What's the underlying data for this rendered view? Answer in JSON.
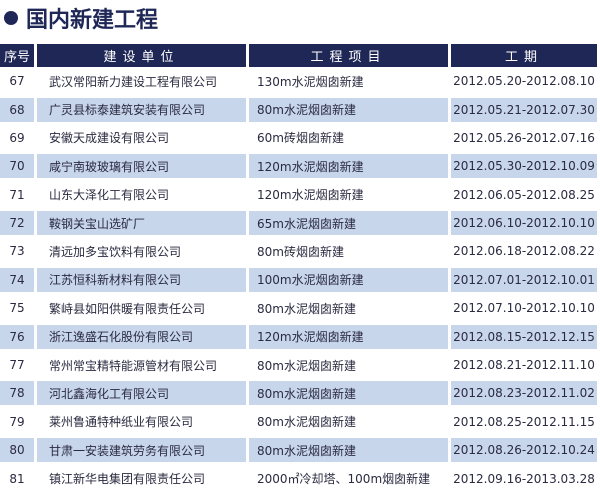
{
  "title": "国内新建工程",
  "headers": [
    "序号",
    "建设单位",
    "工程项目",
    "工期"
  ],
  "rows": [
    [
      "67",
      "武汉常阳新力建设工程有限公司",
      "130m水泥烟囱新建",
      "2012.05.20-2012.08.10"
    ],
    [
      "68",
      "广灵县标泰建筑安装有限公司",
      "80m水泥烟囱新建",
      "2012.05.21-2012.07.30"
    ],
    [
      "69",
      "安徽天成建设有限公司",
      "60m砖烟囱新建",
      "2012.05.26-2012.07.16"
    ],
    [
      "70",
      "咸宁南玻玻璃有限公司",
      "120m水泥烟囱新建",
      "2012.05.30-2012.10.09"
    ],
    [
      "71",
      "山东大泽化工有限公司",
      "120m水泥烟囱新建",
      "2012.06.05-2012.08.25"
    ],
    [
      "72",
      "鞍钢关宝山选矿厂",
      "65m水泥烟囱新建",
      "2012.06.10-2012.10.10"
    ],
    [
      "73",
      "清远加多宝饮料有限公司",
      "80m砖烟囱新建",
      "2012.06.18-2012.08.22"
    ],
    [
      "74",
      "江苏恒科新材料有限公司",
      "100m水泥烟囱新建",
      "2012.07.01-2012.10.01"
    ],
    [
      "75",
      "繁峙县如阳供暖有限责任公司",
      "80m水泥烟囱新建",
      "2012.07.10-2012.10.10"
    ],
    [
      "76",
      "浙江逸盛石化股份有限公司",
      "120m水泥烟囱新建",
      "2012.08.15-2012.12.15"
    ],
    [
      "77",
      "常州常宝精特能源管材有限公司",
      "80m水泥烟囱新建",
      "2012.08.21-2012.11.10"
    ],
    [
      "78",
      "河北鑫海化工有限公司",
      "80m水泥烟囱新建",
      "2012.08.23-2012.11.02"
    ],
    [
      "79",
      "莱州鲁通特种纸业有限公司",
      "80m水泥烟囱新建",
      "2012.08.25-2012.11.15"
    ],
    [
      "80",
      "甘肃一安装建筑劳务有限公司",
      "80m水泥烟囱新建",
      "2012.08.26-2012.10.24"
    ],
    [
      "81",
      "镇江新华电集团有限责任公司",
      "2000㎡冷却塔、100m烟囱新建",
      "2012.09.16-2013.03.28"
    ]
  ],
  "colors": {
    "header": "#1f2757",
    "shade": "#c8d6eb"
  }
}
